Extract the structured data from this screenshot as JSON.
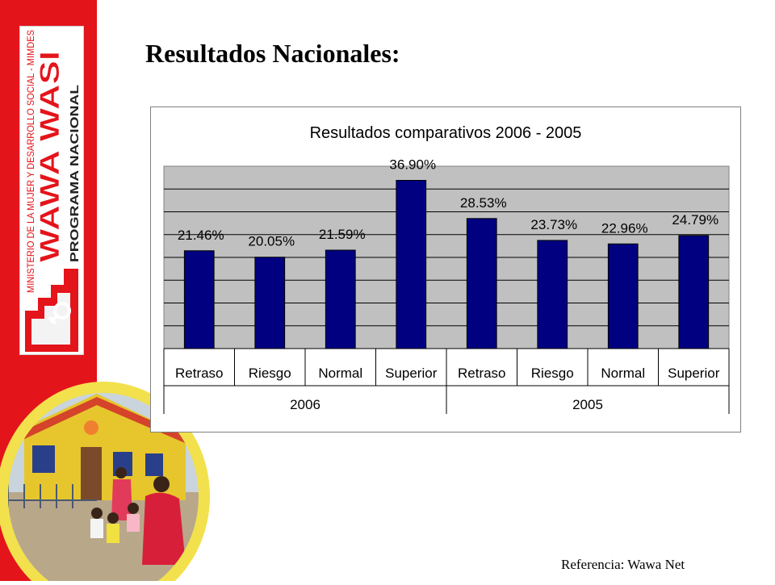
{
  "slide": {
    "title": "Resultados Nacionales:",
    "reference": "Referencia: Wawa Net"
  },
  "logo": {
    "ministry_text": "MINISTERIO DE LA MUJER Y DESARROLLO SOCIAL - MIMDES",
    "brand_text": "WAWA WASI",
    "program_text": "PROGRAMA NACIONAL",
    "brand_color": "#e4141b"
  },
  "photo": {
    "icon": "daycare-building-photo"
  },
  "colors": {
    "sidebar": "#e4141b",
    "bar": "#000080",
    "plot_bg": "#c0c0c0",
    "photo_ring": "#f2e14c"
  },
  "chart_data": {
    "type": "bar",
    "title": "Resultados comparativos 2006 - 2005",
    "xlabel": "",
    "ylabel": "",
    "ylim": [
      0,
      40
    ],
    "grid": true,
    "legend": "none",
    "categories": [
      "Retraso",
      "Riesgo",
      "Normal",
      "Superior",
      "Retraso",
      "Riesgo",
      "Normal",
      "Superior"
    ],
    "groups": [
      {
        "label": "2006",
        "span": 4
      },
      {
        "label": "2005",
        "span": 4
      }
    ],
    "values": [
      21.46,
      20.05,
      21.59,
      36.9,
      28.53,
      23.73,
      22.96,
      24.79
    ],
    "data_labels": [
      "21.46%",
      "20.05%",
      "21.59%",
      "36.90%",
      "28.53%",
      "23.73%",
      "22.96%",
      "24.79%"
    ]
  }
}
